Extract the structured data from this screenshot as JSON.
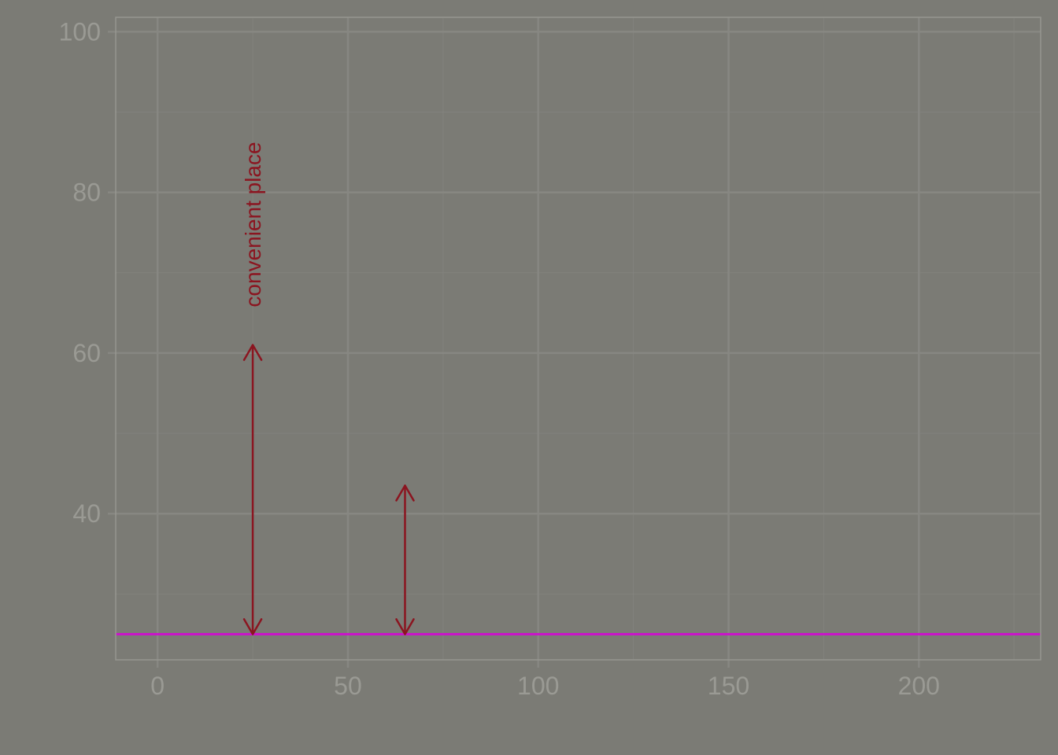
{
  "chart_data": {
    "type": "line",
    "title": "",
    "xlabel": "",
    "ylabel": "",
    "xlim": [
      -11,
      232
    ],
    "ylim": [
      21.8,
      101.8
    ],
    "x_ticks": [
      0,
      50,
      100,
      150,
      200
    ],
    "x_tick_labels": [
      "0",
      "50",
      "100",
      "150",
      "200"
    ],
    "x_minor_ticks": [
      25,
      75,
      125,
      175,
      225
    ],
    "y_ticks": [
      40,
      60,
      80,
      100
    ],
    "y_tick_labels": [
      "40",
      "60",
      "80",
      "100"
    ],
    "y_minor_ticks": [
      30,
      50,
      70,
      90
    ],
    "grid": true,
    "legend": "none",
    "hline": {
      "y": 25,
      "color": "#cc11cc"
    },
    "arrows": [
      {
        "x": 25,
        "y_from": 25,
        "y_to": 61,
        "color": "#8b1520"
      },
      {
        "x": 65,
        "y_from": 25,
        "y_to": 43.5,
        "color": "#8b1520"
      }
    ],
    "annotations": [
      {
        "text": "convenient place",
        "x": 25,
        "y": 76,
        "rotation": -90,
        "color": "#8b1520"
      }
    ],
    "colors": {
      "background": "#7b7b75",
      "grid": "#878782",
      "axis_text": "#9a9a94",
      "panel_border": "#969690"
    }
  }
}
